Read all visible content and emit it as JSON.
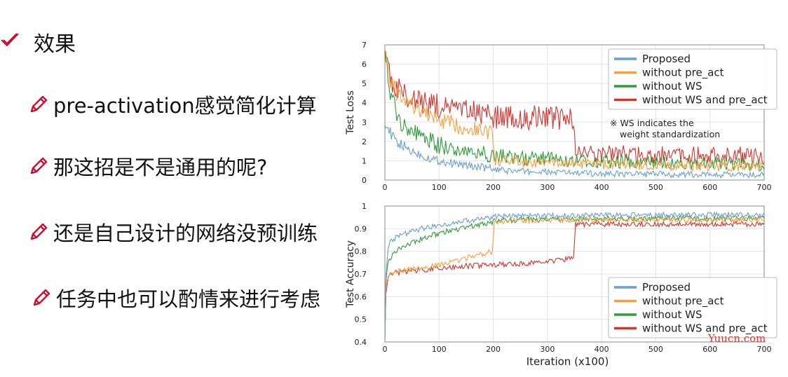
{
  "slide": {
    "heading": "效果",
    "bullets": [
      "pre-activation感觉简化计算",
      "那这招是不是通用的呢?",
      "还是自己设计的网络没预训练",
      "任务中也可以酌情来进行考虑"
    ],
    "icons": {
      "heading": "check-icon",
      "bullet": "pencil-icon"
    },
    "colors": {
      "accent": "#c8102e"
    },
    "watermark": "Yuucn.com"
  },
  "chart_data": [
    {
      "type": "line",
      "ylabel": "Test Loss",
      "xlabel": "",
      "xlim": [
        0,
        700
      ],
      "ylim": [
        0,
        7
      ],
      "xticks": [
        0,
        100,
        200,
        300,
        400,
        500,
        600,
        700
      ],
      "yticks": [
        0,
        1,
        2,
        3,
        4,
        5,
        6,
        7
      ],
      "grid": true,
      "legend": "top-right",
      "annotation": [
        "※ WS indicates the",
        "weight standardization"
      ],
      "x": [
        0,
        5,
        10,
        20,
        30,
        50,
        75,
        100,
        150,
        199,
        201,
        250,
        300,
        349,
        351,
        400,
        500,
        600,
        700
      ],
      "series": [
        {
          "name": "Proposed",
          "color": "#6a9fd0",
          "values": [
            3.2,
            2.7,
            2.4,
            2.0,
            1.8,
            1.5,
            1.2,
            1.0,
            0.75,
            0.6,
            0.5,
            0.45,
            0.4,
            0.38,
            0.35,
            0.33,
            0.3,
            0.28,
            0.25
          ]
        },
        {
          "name": "without pre_act",
          "color": "#f4a043",
          "values": [
            7.0,
            6.0,
            5.2,
            4.6,
            4.2,
            3.9,
            3.5,
            3.1,
            2.7,
            2.5,
            1.0,
            0.95,
            0.9,
            0.88,
            0.85,
            0.8,
            0.75,
            0.72,
            0.7
          ]
        },
        {
          "name": "without WS",
          "color": "#2e9c3a",
          "values": [
            7.0,
            5.2,
            4.3,
            3.6,
            3.1,
            2.5,
            2.1,
            1.8,
            1.5,
            1.3,
            1.25,
            1.15,
            1.1,
            1.05,
            1.0,
            0.95,
            0.9,
            0.85,
            0.8
          ]
        },
        {
          "name": "without WS and pre_act",
          "color": "#d2352e",
          "values": [
            7.0,
            6.0,
            5.3,
            4.8,
            4.5,
            4.2,
            4.0,
            3.8,
            3.5,
            3.4,
            3.3,
            3.25,
            3.2,
            3.15,
            1.4,
            1.35,
            1.3,
            1.3,
            1.28
          ]
        }
      ]
    },
    {
      "type": "line",
      "ylabel": "Test Accuracy",
      "xlabel": "Iteration (x100)",
      "xlim": [
        0,
        700
      ],
      "ylim": [
        0.4,
        1.0
      ],
      "xticks": [
        0,
        100,
        200,
        300,
        400,
        500,
        600,
        700
      ],
      "yticks": [
        0.4,
        0.5,
        0.6,
        0.7,
        0.8,
        0.9,
        1.0
      ],
      "grid": true,
      "legend": "bottom-right",
      "x": [
        0,
        2,
        5,
        10,
        20,
        30,
        50,
        75,
        100,
        150,
        199,
        201,
        250,
        300,
        349,
        351,
        400,
        500,
        600,
        700
      ],
      "series": [
        {
          "name": "Proposed",
          "color": "#6a9fd0",
          "values": [
            0.42,
            0.7,
            0.8,
            0.84,
            0.86,
            0.87,
            0.89,
            0.905,
            0.915,
            0.935,
            0.95,
            0.952,
            0.955,
            0.957,
            0.958,
            0.958,
            0.959,
            0.96,
            0.96,
            0.96
          ]
        },
        {
          "name": "without pre_act",
          "color": "#f4a043",
          "values": [
            0.42,
            0.64,
            0.68,
            0.7,
            0.71,
            0.715,
            0.72,
            0.73,
            0.74,
            0.77,
            0.8,
            0.93,
            0.935,
            0.937,
            0.94,
            0.94,
            0.94,
            0.94,
            0.94,
            0.94
          ]
        },
        {
          "name": "without WS",
          "color": "#2e9c3a",
          "values": [
            0.42,
            0.66,
            0.74,
            0.77,
            0.8,
            0.82,
            0.84,
            0.86,
            0.88,
            0.905,
            0.93,
            0.935,
            0.938,
            0.94,
            0.941,
            0.942,
            0.943,
            0.945,
            0.945,
            0.945
          ]
        },
        {
          "name": "without WS and pre_act",
          "color": "#d2352e",
          "values": [
            0.42,
            0.62,
            0.68,
            0.7,
            0.705,
            0.71,
            0.715,
            0.72,
            0.725,
            0.735,
            0.74,
            0.74,
            0.745,
            0.755,
            0.77,
            0.92,
            0.92,
            0.92,
            0.92,
            0.92
          ]
        }
      ]
    }
  ]
}
